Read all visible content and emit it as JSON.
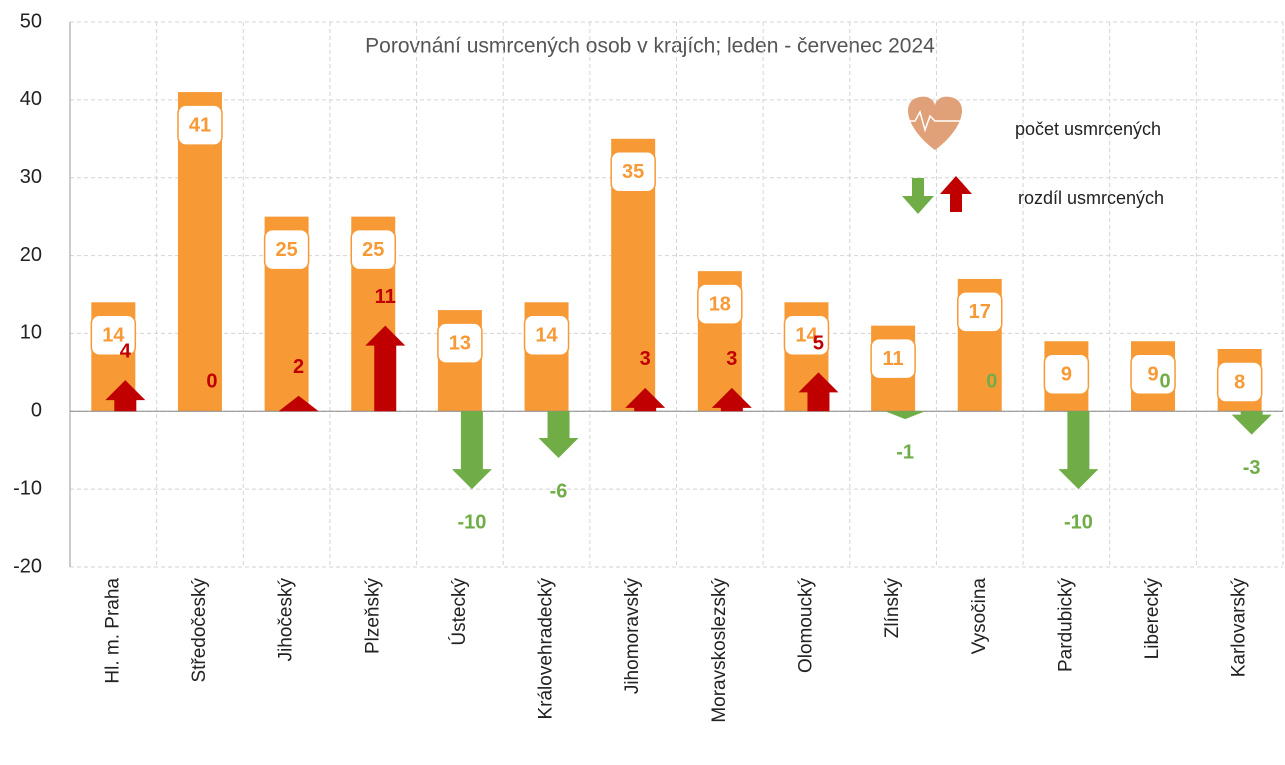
{
  "chart_data": {
    "type": "bar",
    "title": "Porovnání usmrcených osob v krajích; leden - červenec 2024",
    "categories": [
      "Hl. m. Praha",
      "Středočeský",
      "Jihočeský",
      "Plzeňský",
      "Ústecký",
      "Královehradecký",
      "Jihomoravský",
      "Moravskoslezský",
      "Olomoucký",
      "Zlínský",
      "Vysočina",
      "Pardubický",
      "Liberecký",
      "Karlovarský"
    ],
    "series": [
      {
        "name": "počet usmrcených",
        "color": "#f79a36",
        "values": [
          14,
          41,
          25,
          25,
          13,
          14,
          35,
          18,
          14,
          11,
          17,
          9,
          9,
          8
        ]
      },
      {
        "name": "rozdíl usmrcených",
        "colors": [
          "#c00000",
          "#c00000",
          "#c00000",
          "#c00000",
          "#70ad47",
          "#70ad47",
          "#c00000",
          "#c00000",
          "#c00000",
          "#70ad47",
          "#70ad47",
          "#70ad47",
          "#70ad47",
          "#70ad47"
        ],
        "values": [
          4,
          0,
          2,
          11,
          -10,
          -6,
          3,
          3,
          5,
          -1,
          0,
          -10,
          0,
          -3
        ]
      }
    ],
    "ylim": [
      -20,
      50
    ],
    "yticks": [
      -20,
      -10,
      0,
      10,
      20,
      30,
      40,
      50
    ],
    "grid": true
  }
}
